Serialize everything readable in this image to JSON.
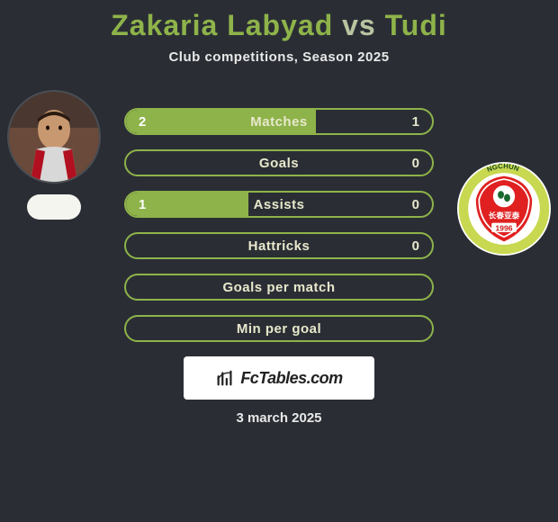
{
  "title": {
    "player1": "Zakaria Labyad",
    "vs": "vs",
    "player2": "Tudi"
  },
  "subtitle": "Club competitions, Season 2025",
  "colors": {
    "accent": "#8eb34a",
    "background": "#2a2e34",
    "text_light": "#e8e8cc",
    "white": "#ffffff"
  },
  "stats": {
    "rows": [
      {
        "label": "Matches",
        "left": "2",
        "right": "1",
        "left_pct": 62,
        "right_pct": 0,
        "show_left": true,
        "show_right": true
      },
      {
        "label": "Goals",
        "left": "",
        "right": "0",
        "left_pct": 0,
        "right_pct": 0,
        "show_left": false,
        "show_right": true
      },
      {
        "label": "Assists",
        "left": "1",
        "right": "0",
        "left_pct": 40,
        "right_pct": 0,
        "show_left": true,
        "show_right": true
      },
      {
        "label": "Hattricks",
        "left": "",
        "right": "0",
        "left_pct": 0,
        "right_pct": 0,
        "show_left": false,
        "show_right": true
      },
      {
        "label": "Goals per match",
        "left": "",
        "right": "",
        "left_pct": 0,
        "right_pct": 0,
        "show_left": false,
        "show_right": false
      },
      {
        "label": "Min per goal",
        "left": "",
        "right": "",
        "left_pct": 0,
        "right_pct": 0,
        "show_left": false,
        "show_right": false
      }
    ]
  },
  "brand": "FcTables.com",
  "date": "3 march 2025",
  "club_badge": {
    "ring": "#c8d850",
    "inner": "#e02020",
    "text_top": "长春亚泰",
    "year": "1996"
  }
}
